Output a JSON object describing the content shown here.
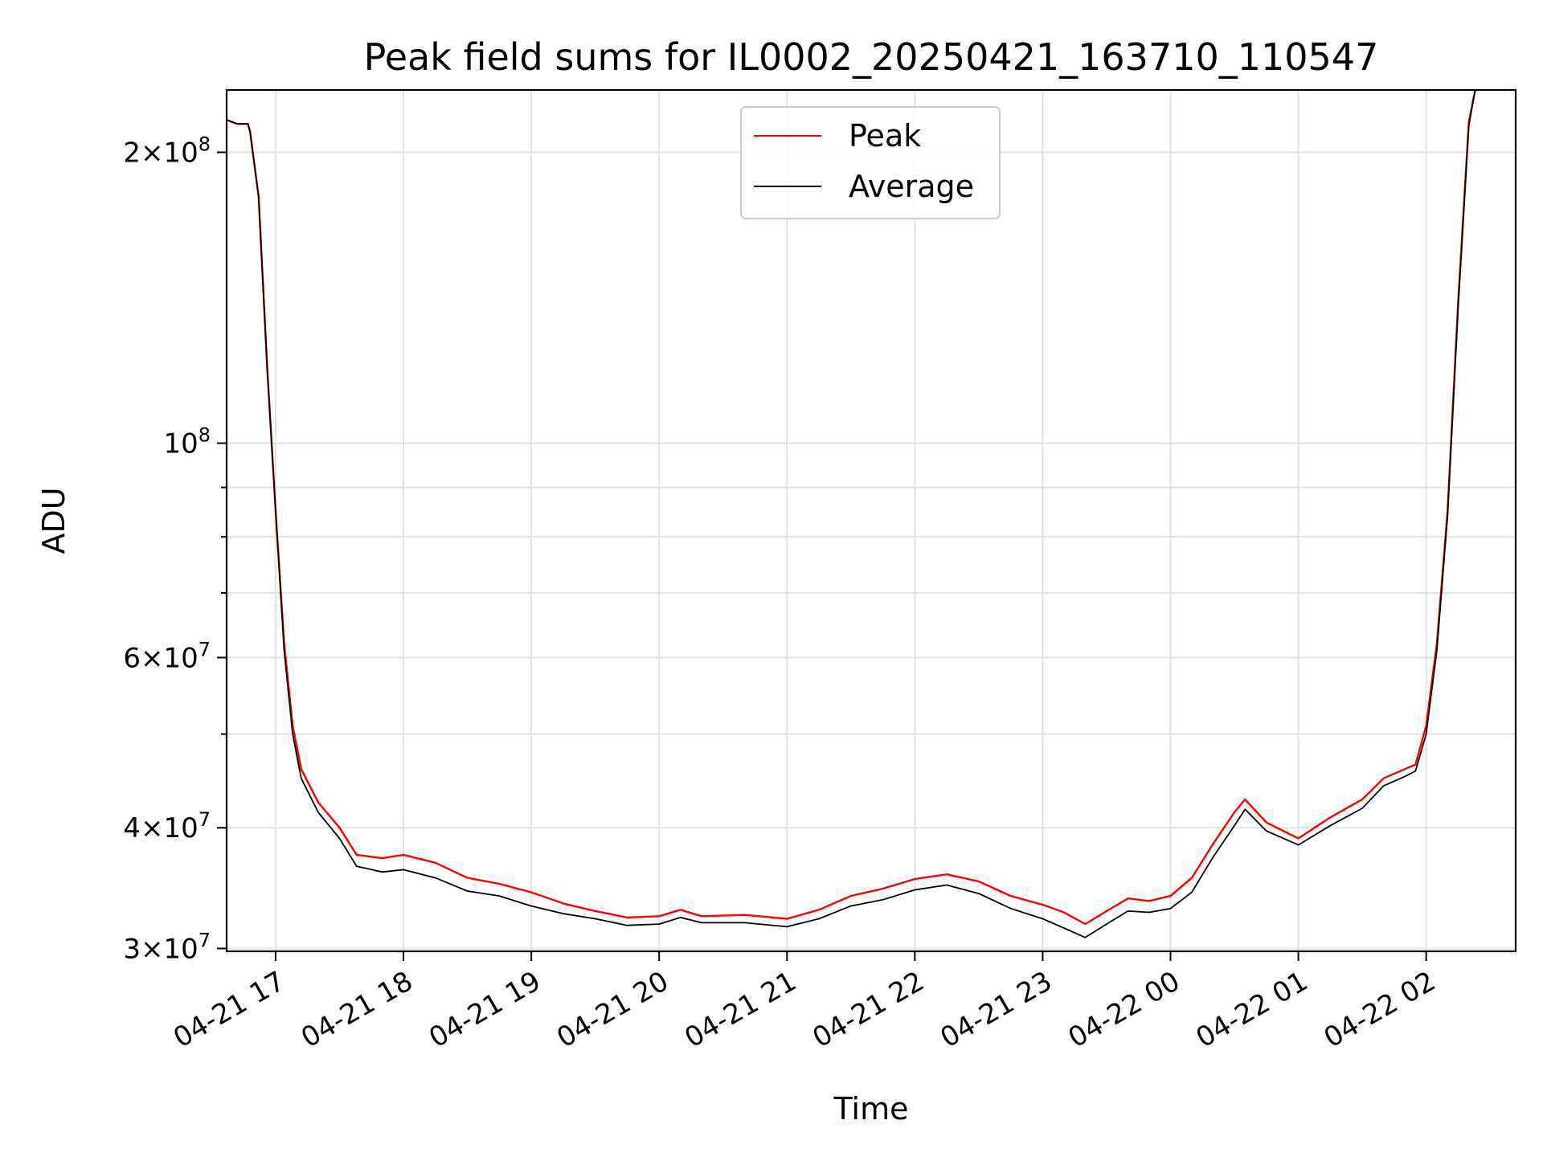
{
  "chart_data": {
    "type": "line",
    "title": "Peak field sums for IL0002_20250421_163710_110547",
    "xlabel": "Time",
    "ylabel": "ADU",
    "y_scale": "log",
    "ylim": [
      29800000,
      232000000
    ],
    "x_range": [
      "2025-04-21 16:37",
      "2025-04-22 02:42"
    ],
    "grid": true,
    "legend_position": "upper center",
    "x_ticks": [
      {
        "t": "2025-04-21 17:00",
        "label": "04-21 17"
      },
      {
        "t": "2025-04-21 18:00",
        "label": "04-21 18"
      },
      {
        "t": "2025-04-21 19:00",
        "label": "04-21 19"
      },
      {
        "t": "2025-04-21 20:00",
        "label": "04-21 20"
      },
      {
        "t": "2025-04-21 21:00",
        "label": "04-21 21"
      },
      {
        "t": "2025-04-21 22:00",
        "label": "04-21 22"
      },
      {
        "t": "2025-04-21 23:00",
        "label": "04-21 23"
      },
      {
        "t": "2025-04-22 00:00",
        "label": "04-22 00"
      },
      {
        "t": "2025-04-22 01:00",
        "label": "04-22 01"
      },
      {
        "t": "2025-04-22 02:00",
        "label": "04-22 02"
      }
    ],
    "y_ticks_major": [
      {
        "value": 30000000,
        "mantissa": "3",
        "exp": "7"
      },
      {
        "value": 40000000,
        "mantissa": "4",
        "exp": "7"
      },
      {
        "value": 60000000,
        "mantissa": "6",
        "exp": "7"
      },
      {
        "value": 100000000,
        "mantissa": "",
        "exp": "8"
      },
      {
        "value": 200000000,
        "mantissa": "2",
        "exp": "8"
      }
    ],
    "y_ticks_minor": [
      50000000,
      70000000,
      80000000,
      90000000
    ],
    "series": [
      {
        "name": "Peak",
        "color": "#ff0000",
        "points": [
          [
            "2025-04-21 16:37",
            216000000
          ],
          [
            "2025-04-21 16:42",
            214000000
          ],
          [
            "2025-04-21 16:47",
            214000000
          ],
          [
            "2025-04-21 16:48",
            210000000
          ],
          [
            "2025-04-21 16:52",
            180000000
          ],
          [
            "2025-04-21 16:56",
            120000000
          ],
          [
            "2025-04-21 17:00",
            85000000
          ],
          [
            "2025-04-21 17:04",
            62000000
          ],
          [
            "2025-04-21 17:08",
            51000000
          ],
          [
            "2025-04-21 17:12",
            46000000
          ],
          [
            "2025-04-21 17:20",
            42500000
          ],
          [
            "2025-04-21 17:30",
            40000000
          ],
          [
            "2025-04-21 17:38",
            37500000
          ],
          [
            "2025-04-21 17:50",
            37200000
          ],
          [
            "2025-04-21 18:00",
            37500000
          ],
          [
            "2025-04-21 18:15",
            36800000
          ],
          [
            "2025-04-21 18:30",
            35500000
          ],
          [
            "2025-04-21 18:45",
            35000000
          ],
          [
            "2025-04-21 19:00",
            34300000
          ],
          [
            "2025-04-21 19:15",
            33400000
          ],
          [
            "2025-04-21 19:30",
            32800000
          ],
          [
            "2025-04-21 19:45",
            32300000
          ],
          [
            "2025-04-21 20:00",
            32400000
          ],
          [
            "2025-04-21 20:10",
            32900000
          ],
          [
            "2025-04-21 20:20",
            32400000
          ],
          [
            "2025-04-21 20:40",
            32500000
          ],
          [
            "2025-04-21 21:00",
            32200000
          ],
          [
            "2025-04-21 21:15",
            32900000
          ],
          [
            "2025-04-21 21:30",
            34000000
          ],
          [
            "2025-04-21 21:45",
            34600000
          ],
          [
            "2025-04-21 22:00",
            35400000
          ],
          [
            "2025-04-21 22:15",
            35800000
          ],
          [
            "2025-04-21 22:30",
            35200000
          ],
          [
            "2025-04-21 22:45",
            34000000
          ],
          [
            "2025-04-21 23:00",
            33300000
          ],
          [
            "2025-04-21 23:10",
            32700000
          ],
          [
            "2025-04-21 23:20",
            31800000
          ],
          [
            "2025-04-21 23:30",
            32800000
          ],
          [
            "2025-04-21 23:40",
            33800000
          ],
          [
            "2025-04-21 23:50",
            33600000
          ],
          [
            "2025-04-22 00:00",
            34000000
          ],
          [
            "2025-04-22 00:10",
            35500000
          ],
          [
            "2025-04-22 00:20",
            38500000
          ],
          [
            "2025-04-22 00:30",
            41500000
          ],
          [
            "2025-04-22 00:35",
            42800000
          ],
          [
            "2025-04-22 00:45",
            40500000
          ],
          [
            "2025-04-22 01:00",
            39000000
          ],
          [
            "2025-04-22 01:15",
            41000000
          ],
          [
            "2025-04-22 01:30",
            42800000
          ],
          [
            "2025-04-22 01:40",
            45000000
          ],
          [
            "2025-04-22 01:50",
            46000000
          ],
          [
            "2025-04-22 01:55",
            46500000
          ],
          [
            "2025-04-22 02:00",
            51000000
          ],
          [
            "2025-04-22 02:05",
            62000000
          ],
          [
            "2025-04-22 02:10",
            85000000
          ],
          [
            "2025-04-22 02:15",
            140000000
          ],
          [
            "2025-04-22 02:20",
            215000000
          ],
          [
            "2025-04-22 02:23",
            232000000
          ]
        ]
      },
      {
        "name": "Average",
        "color": "#000000",
        "points": [
          [
            "2025-04-21 16:37",
            216000000
          ],
          [
            "2025-04-21 16:42",
            214000000
          ],
          [
            "2025-04-21 16:47",
            214000000
          ],
          [
            "2025-04-21 16:48",
            210000000
          ],
          [
            "2025-04-21 16:52",
            180000000
          ],
          [
            "2025-04-21 16:56",
            120000000
          ],
          [
            "2025-04-21 17:00",
            85000000
          ],
          [
            "2025-04-21 17:04",
            61000000
          ],
          [
            "2025-04-21 17:08",
            50000000
          ],
          [
            "2025-04-21 17:12",
            45000000
          ],
          [
            "2025-04-21 17:20",
            41500000
          ],
          [
            "2025-04-21 17:30",
            39000000
          ],
          [
            "2025-04-21 17:38",
            36500000
          ],
          [
            "2025-04-21 17:50",
            36000000
          ],
          [
            "2025-04-21 18:00",
            36200000
          ],
          [
            "2025-04-21 18:15",
            35500000
          ],
          [
            "2025-04-21 18:30",
            34400000
          ],
          [
            "2025-04-21 18:45",
            34000000
          ],
          [
            "2025-04-21 19:00",
            33200000
          ],
          [
            "2025-04-21 19:15",
            32600000
          ],
          [
            "2025-04-21 19:30",
            32200000
          ],
          [
            "2025-04-21 19:45",
            31700000
          ],
          [
            "2025-04-21 20:00",
            31800000
          ],
          [
            "2025-04-21 20:10",
            32300000
          ],
          [
            "2025-04-21 20:20",
            31900000
          ],
          [
            "2025-04-21 20:40",
            31900000
          ],
          [
            "2025-04-21 21:00",
            31600000
          ],
          [
            "2025-04-21 21:15",
            32200000
          ],
          [
            "2025-04-21 21:30",
            33200000
          ],
          [
            "2025-04-21 21:45",
            33700000
          ],
          [
            "2025-04-21 22:00",
            34500000
          ],
          [
            "2025-04-21 22:15",
            34900000
          ],
          [
            "2025-04-21 22:30",
            34200000
          ],
          [
            "2025-04-21 22:45",
            33000000
          ],
          [
            "2025-04-21 23:00",
            32200000
          ],
          [
            "2025-04-21 23:10",
            31500000
          ],
          [
            "2025-04-21 23:20",
            30800000
          ],
          [
            "2025-04-21 23:30",
            31800000
          ],
          [
            "2025-04-21 23:40",
            32800000
          ],
          [
            "2025-04-21 23:50",
            32700000
          ],
          [
            "2025-04-22 00:00",
            33000000
          ],
          [
            "2025-04-22 00:10",
            34300000
          ],
          [
            "2025-04-22 00:20",
            37300000
          ],
          [
            "2025-04-22 00:30",
            40200000
          ],
          [
            "2025-04-22 00:35",
            41800000
          ],
          [
            "2025-04-22 00:45",
            39700000
          ],
          [
            "2025-04-22 01:00",
            38400000
          ],
          [
            "2025-04-22 01:15",
            40200000
          ],
          [
            "2025-04-22 01:30",
            41900000
          ],
          [
            "2025-04-22 01:40",
            44200000
          ],
          [
            "2025-04-22 01:50",
            45200000
          ],
          [
            "2025-04-22 01:55",
            45800000
          ],
          [
            "2025-04-22 02:00",
            50000000
          ],
          [
            "2025-04-22 02:05",
            61000000
          ],
          [
            "2025-04-22 02:10",
            84000000
          ],
          [
            "2025-04-22 02:15",
            138000000
          ],
          [
            "2025-04-22 02:20",
            213000000
          ],
          [
            "2025-04-22 02:23",
            232000000
          ]
        ]
      }
    ]
  }
}
